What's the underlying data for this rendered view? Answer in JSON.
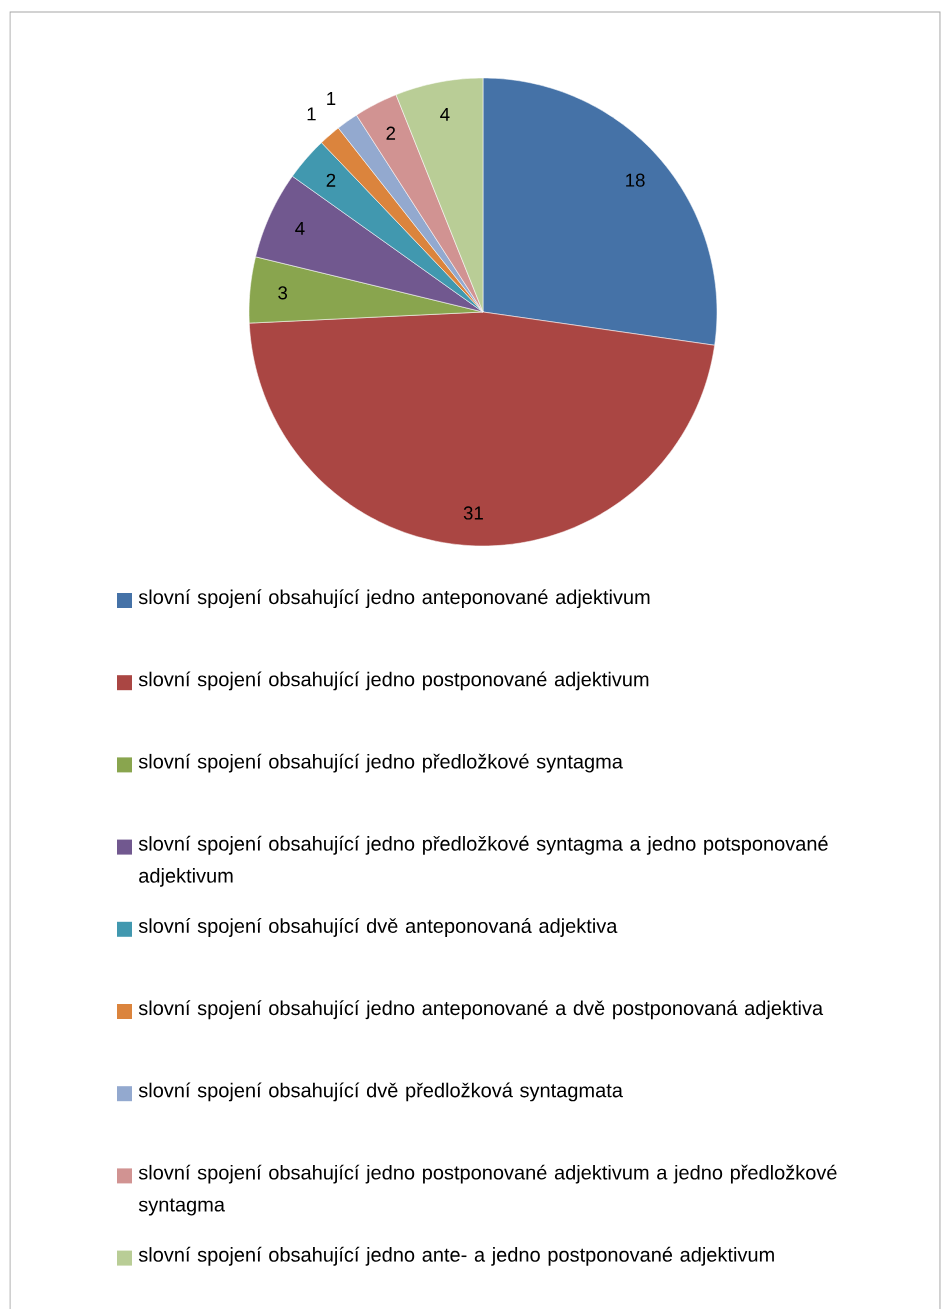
{
  "chart_data": {
    "type": "pie",
    "categories": [
      "slovní spojení obsahující jedno anteponované adjektivum",
      "slovní spojení obsahující jedno postponované adjektivum",
      "slovní spojení obsahující jedno předložkové syntagma",
      "slovní spojení obsahující jedno předložkové syntagma  a jedno potsponované adjektivum",
      "slovní spojení obsahující dvě anteponovaná adjektiva",
      "slovní spojení obsahující  jedno anteponované a dvě postponovaná adjektiva",
      "slovní spojení obsahující dvě předložková syntagmata",
      "slovní spojení obsahující jedno postponované adjektivum a jedno předložkové syntagma",
      "slovní spojení obsahující jedno ante- a jedno postponované adjektivum"
    ],
    "values": [
      18,
      31,
      3,
      4,
      2,
      1,
      1,
      2,
      4
    ],
    "colors": [
      "#4572a7",
      "#aa4643",
      "#89a54e",
      "#71588f",
      "#4198af",
      "#db843d",
      "#93a9cf",
      "#d19392",
      "#b9cd96"
    ],
    "data_labels": true,
    "legend": "bottom"
  }
}
